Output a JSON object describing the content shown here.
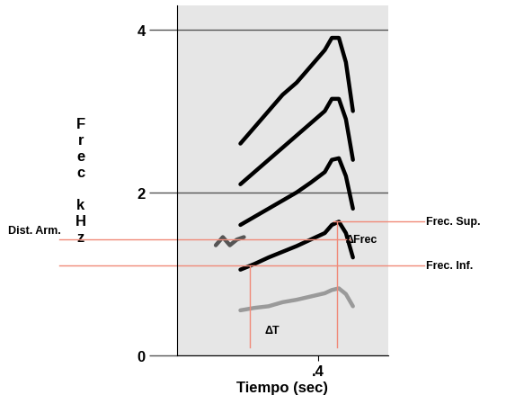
{
  "chart_data": {
    "type": "spectrogram",
    "x_label": "Tiempo (sec)",
    "y_label": "Frec kHz",
    "xlim": [
      0.2,
      0.5
    ],
    "xticks": [
      {
        "value": 0.4,
        "label": ".4"
      }
    ],
    "ylim": [
      0,
      4.3
    ],
    "yticks": [
      0,
      2,
      4
    ],
    "grid": true,
    "series": [
      {
        "color": "#9a9a9a",
        "x": [
          0.29,
          0.31,
          0.33,
          0.35,
          0.37,
          0.39,
          0.41,
          0.42,
          0.43,
          0.44,
          0.45
        ],
        "values": [
          0.55,
          0.58,
          0.6,
          0.65,
          0.68,
          0.72,
          0.76,
          0.8,
          0.82,
          0.75,
          0.6
        ]
      },
      {
        "color": "#000000",
        "x": [
          0.29,
          0.31,
          0.33,
          0.35,
          0.37,
          0.39,
          0.41,
          0.42,
          0.43,
          0.44,
          0.45
        ],
        "values": [
          1.05,
          1.12,
          1.2,
          1.27,
          1.34,
          1.42,
          1.5,
          1.6,
          1.64,
          1.5,
          1.2
        ]
      },
      {
        "color": "#000000",
        "x": [
          0.29,
          0.31,
          0.33,
          0.35,
          0.37,
          0.39,
          0.41,
          0.42,
          0.43,
          0.44,
          0.45
        ],
        "values": [
          1.6,
          1.7,
          1.8,
          1.9,
          2.0,
          2.12,
          2.25,
          2.4,
          2.42,
          2.2,
          1.8
        ]
      },
      {
        "color": "#000000",
        "x": [
          0.29,
          0.31,
          0.33,
          0.35,
          0.37,
          0.39,
          0.41,
          0.42,
          0.43,
          0.44,
          0.45
        ],
        "values": [
          2.1,
          2.25,
          2.4,
          2.55,
          2.7,
          2.85,
          3.0,
          3.15,
          3.15,
          2.9,
          2.4
        ]
      },
      {
        "color": "#000000",
        "x": [
          0.29,
          0.31,
          0.33,
          0.35,
          0.37,
          0.39,
          0.41,
          0.42,
          0.43,
          0.44,
          0.45
        ],
        "values": [
          2.6,
          2.8,
          3.0,
          3.2,
          3.35,
          3.55,
          3.75,
          3.9,
          3.9,
          3.6,
          3.0
        ]
      },
      {
        "color": "#555555",
        "x": [
          0.255,
          0.265,
          0.275,
          0.285,
          0.295
        ],
        "values": [
          1.35,
          1.45,
          1.35,
          1.42,
          1.45
        ]
      }
    ],
    "annotations": [
      {
        "text": "Dist. Arm.",
        "y": 1.42
      },
      {
        "text": "Frec. Sup.",
        "y": 1.64
      },
      {
        "text": "Frec. Inf.",
        "y": 1.1
      },
      {
        "text": "ΔFrec"
      },
      {
        "text": "ΔT",
        "x": [
          0.303,
          0.427
        ]
      }
    ]
  }
}
